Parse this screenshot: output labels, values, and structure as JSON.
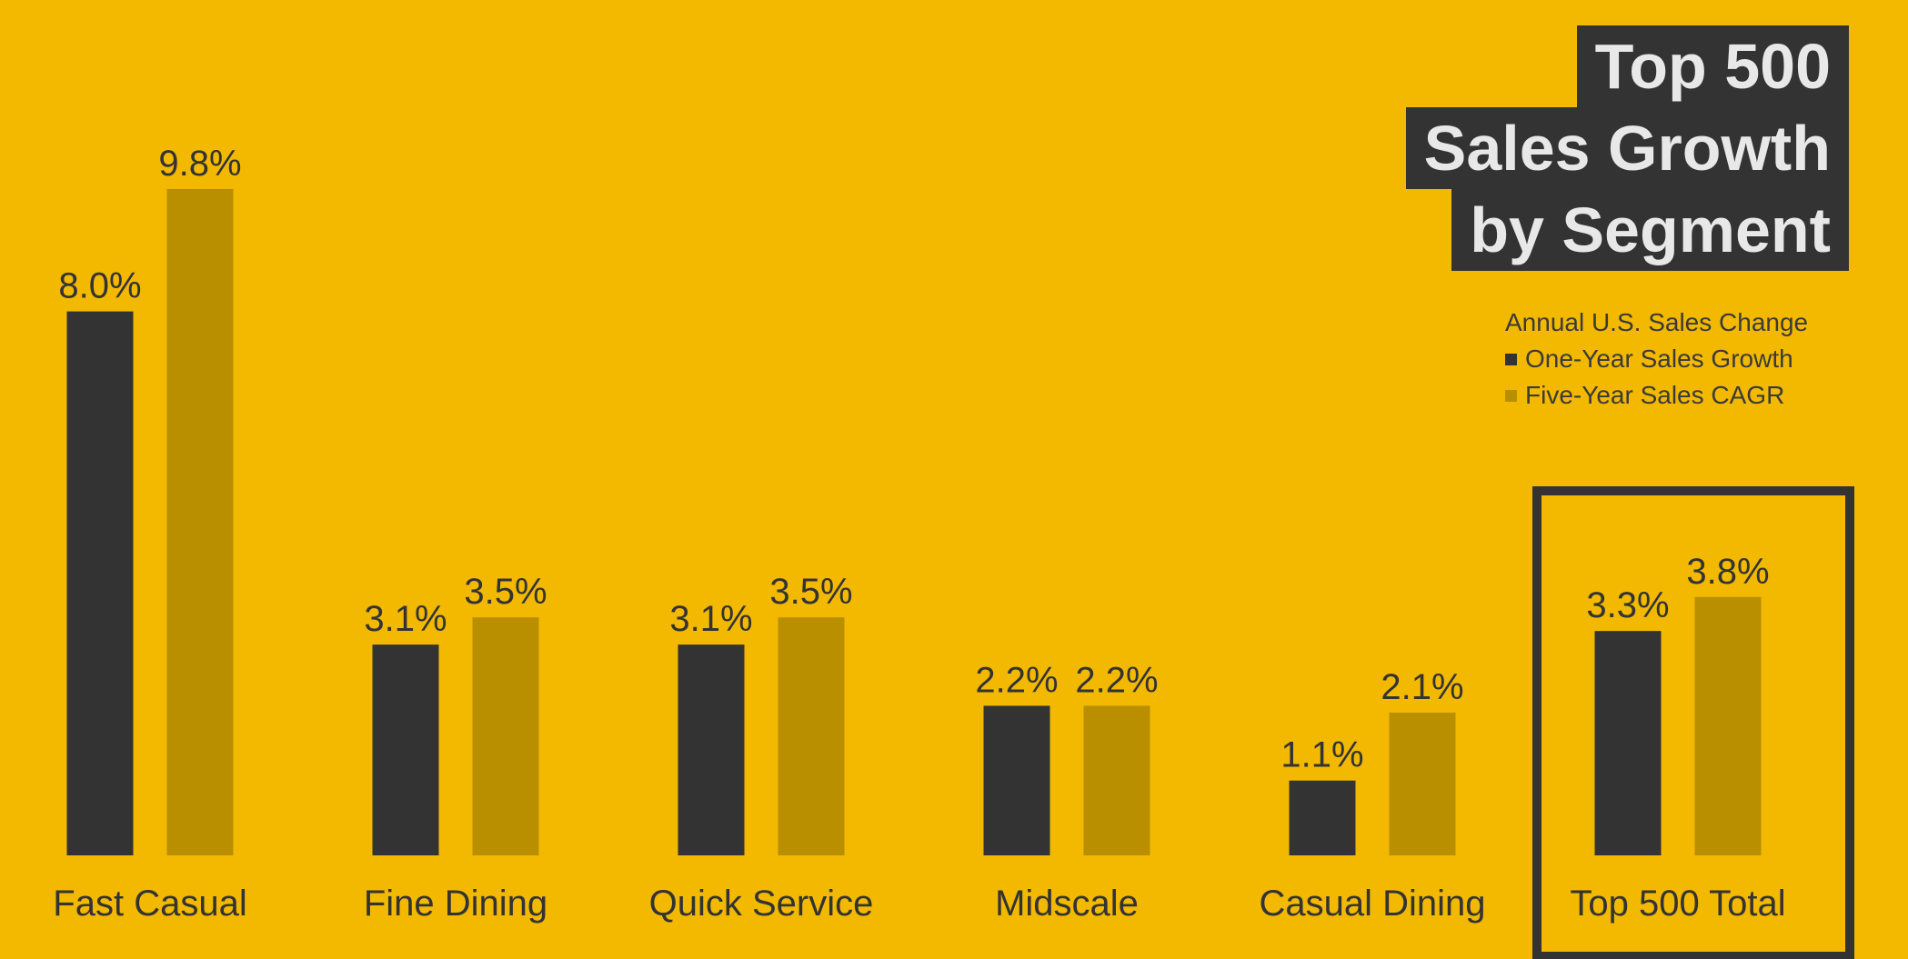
{
  "title": {
    "lines": [
      "Top 500",
      "Sales Growth",
      "by Segment"
    ]
  },
  "legend": {
    "heading": "Annual U.S. Sales Change",
    "items": [
      {
        "label": "One-Year Sales Growth",
        "color": "#333333"
      },
      {
        "label": "Five-Year Sales CAGR",
        "color": "#b98f00"
      }
    ]
  },
  "chart_data": {
    "type": "bar",
    "categories": [
      "Fast Casual",
      "Fine Dining",
      "Quick Service",
      "Midscale",
      "Casual Dining",
      "Top 500 Total"
    ],
    "series": [
      {
        "name": "One-Year Sales Growth",
        "values": [
          8.0,
          3.1,
          3.1,
          2.2,
          1.1,
          3.3
        ],
        "labels": [
          "8.0%",
          "3.1%",
          "3.1%",
          "2.2%",
          "1.1%",
          "3.3%"
        ],
        "color": "#333333"
      },
      {
        "name": "Five-Year Sales CAGR",
        "values": [
          9.8,
          3.5,
          3.5,
          2.2,
          2.1,
          3.8
        ],
        "labels": [
          "9.8%",
          "3.5%",
          "3.5%",
          "2.2%",
          "2.1%",
          "3.8%"
        ],
        "color": "#b98f00"
      }
    ],
    "highlighted_category": "Top 500 Total",
    "ylim": [
      0,
      9.8
    ],
    "grid": false,
    "legend_position": "top-right",
    "background": "#f2b900"
  }
}
